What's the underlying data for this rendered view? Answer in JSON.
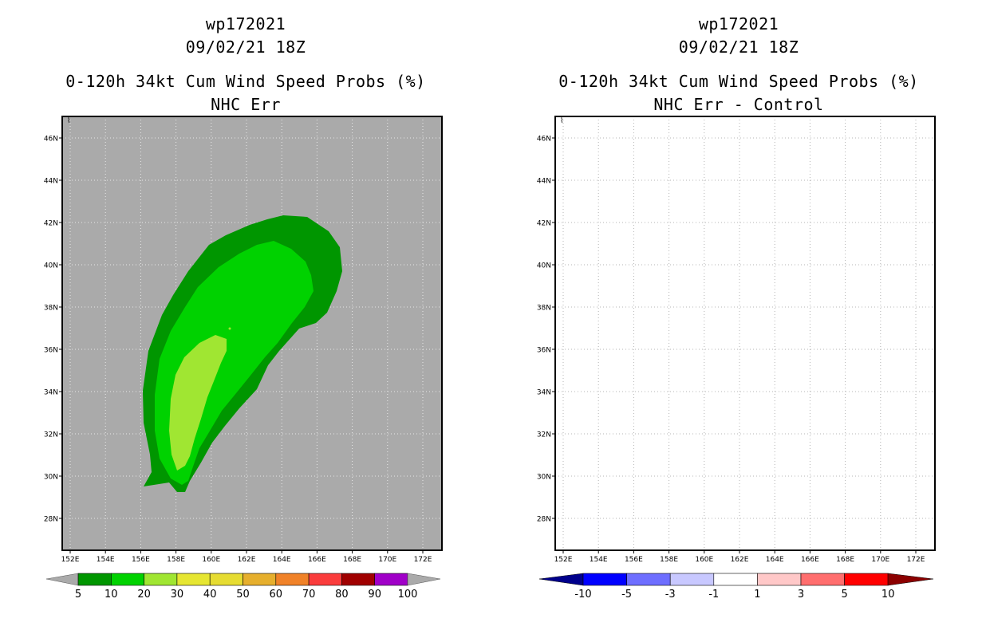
{
  "left_panel": {
    "storm_id": "wp172021",
    "datetime": "09/02/21 18Z",
    "product_title": "0-120h 34kt Cum Wind Speed Probs (%)",
    "subtitle": "NHC Err",
    "lat_labels": [
      "46N",
      "44N",
      "42N",
      "40N",
      "38N",
      "36N",
      "34N",
      "32N",
      "30N",
      "28N"
    ],
    "lon_labels": [
      "152E",
      "154E",
      "156E",
      "158E",
      "160E",
      "162E",
      "164E",
      "166E",
      "168E",
      "170E",
      "172E"
    ],
    "background_color": "#aaaaaa",
    "contour_colors": {
      "p5": "#009600",
      "p10": "#00d200",
      "p20": "#a0e632"
    },
    "colorbar": {
      "labels": [
        "5",
        "10",
        "20",
        "30",
        "40",
        "50",
        "60",
        "70",
        "80",
        "90",
        "100"
      ],
      "colors": [
        "#009600",
        "#00d200",
        "#a0e632",
        "#e6e632",
        "#e6dc32",
        "#e6af2d",
        "#f08228",
        "#fa3c3c",
        "#a00000",
        "#a000c8"
      ],
      "end_color": "#aaaaaa"
    }
  },
  "right_panel": {
    "storm_id": "wp172021",
    "datetime": "09/02/21 18Z",
    "product_title": "0-120h 34kt Cum Wind Speed Probs (%)",
    "subtitle": "NHC Err - Control",
    "lat_labels": [
      "46N",
      "44N",
      "42N",
      "40N",
      "38N",
      "36N",
      "34N",
      "32N",
      "30N",
      "28N"
    ],
    "lon_labels": [
      "152E",
      "154E",
      "156E",
      "158E",
      "160E",
      "162E",
      "164E",
      "166E",
      "168E",
      "170E",
      "172E"
    ],
    "background_color": "#ffffff",
    "colorbar": {
      "labels": [
        "-10",
        "-5",
        "-3",
        "-1",
        "1",
        "3",
        "5",
        "10"
      ],
      "colors": [
        "#0000ff",
        "#6e6eff",
        "#c8c8ff",
        "#ffffff",
        "#ffc8c8",
        "#ff6e6e",
        "#ff0000"
      ],
      "end_left_color": "#00008c",
      "end_right_color": "#8c0000"
    }
  }
}
